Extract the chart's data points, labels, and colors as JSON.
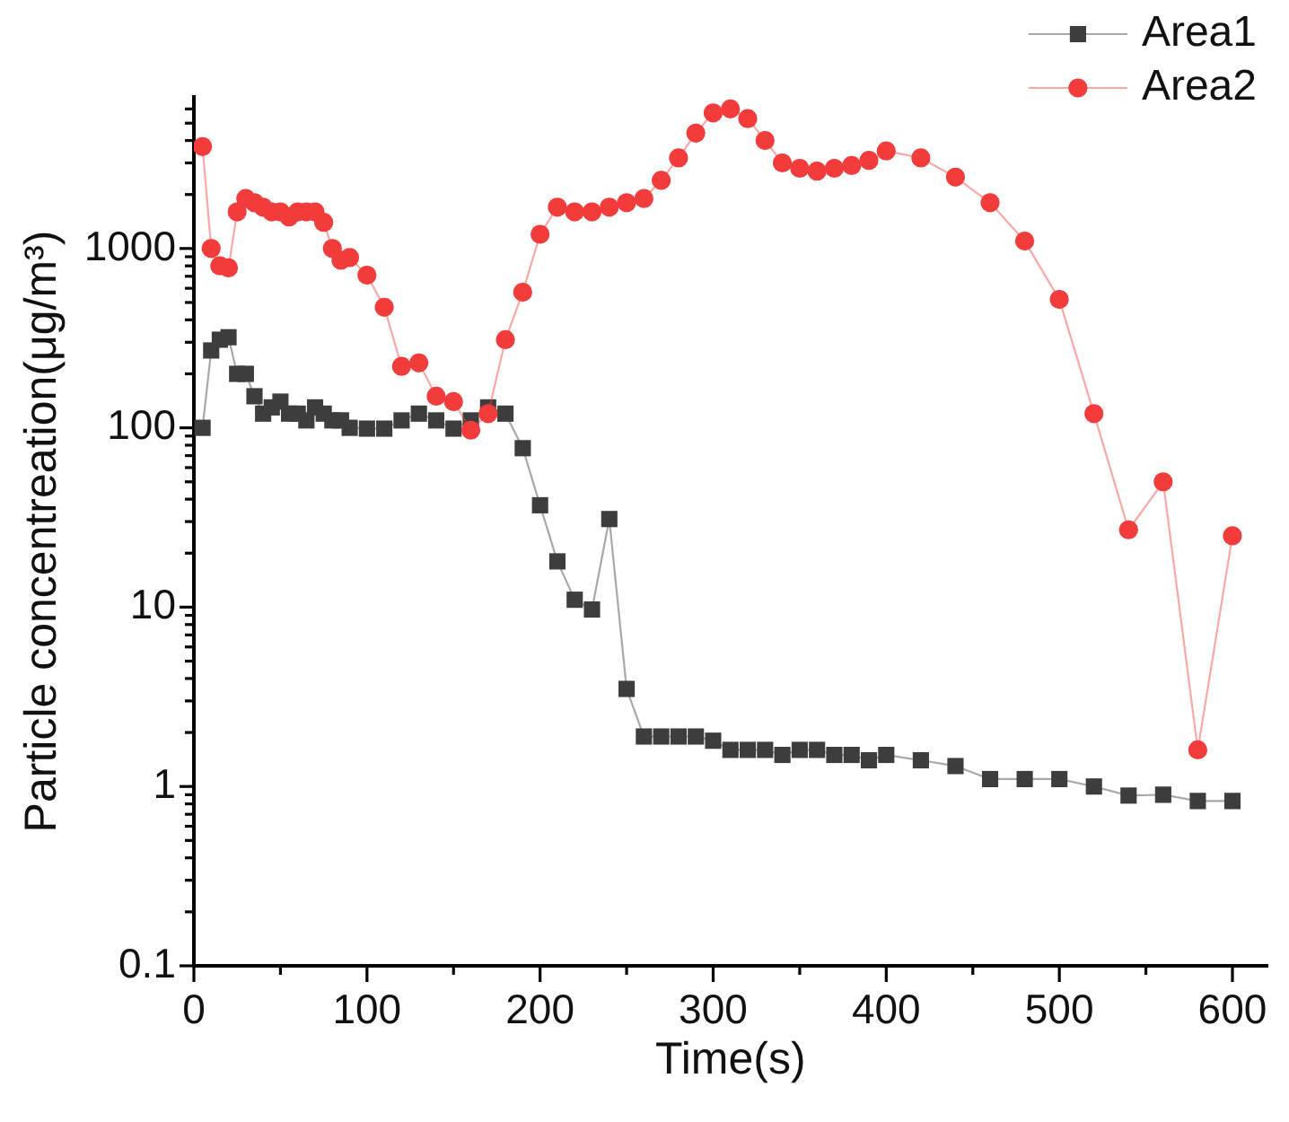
{
  "chart_data": {
    "type": "line",
    "xlabel": "Time(s)",
    "ylabel": "Particle concentreation(μg/m³)",
    "x": [
      5,
      10,
      15,
      20,
      25,
      30,
      35,
      40,
      45,
      50,
      55,
      60,
      65,
      70,
      75,
      80,
      85,
      90,
      100,
      110,
      120,
      130,
      140,
      150,
      160,
      170,
      180,
      190,
      200,
      210,
      220,
      230,
      240,
      250,
      260,
      270,
      280,
      290,
      300,
      310,
      320,
      330,
      340,
      350,
      360,
      370,
      380,
      390,
      400,
      420,
      440,
      460,
      480,
      500,
      520,
      540,
      560,
      580,
      600
    ],
    "series": [
      {
        "name": "Area1",
        "color": "#3d3d3d",
        "marker": "square",
        "values": [
          100,
          270,
          310,
          320,
          200,
          200,
          150,
          120,
          130,
          140,
          120,
          120,
          110,
          130,
          120,
          110,
          110,
          100,
          99,
          99,
          110,
          120,
          110,
          99,
          110,
          130,
          120,
          77,
          37,
          18,
          11,
          9.7,
          31,
          3.5,
          1.9,
          1.9,
          1.9,
          1.9,
          1.8,
          1.6,
          1.6,
          1.6,
          1.5,
          1.6,
          1.6,
          1.5,
          1.5,
          1.4,
          1.5,
          1.4,
          1.3,
          1.1,
          1.1,
          1.1,
          1.0,
          0.89,
          0.9,
          0.83,
          0.83
        ]
      },
      {
        "name": "Area2",
        "color": "#f23c3c",
        "marker": "circle",
        "values": [
          3700,
          1000,
          800,
          780,
          1600,
          1900,
          1800,
          1700,
          1600,
          1600,
          1500,
          1600,
          1600,
          1600,
          1400,
          1000,
          860,
          890,
          710,
          470,
          220,
          230,
          150,
          140,
          97,
          120,
          310,
          570,
          1200,
          1700,
          1600,
          1600,
          1700,
          1800,
          1900,
          2400,
          3200,
          4400,
          5700,
          6000,
          5300,
          4000,
          3000,
          2800,
          2700,
          2800,
          2900,
          3100,
          3500,
          3200,
          2500,
          1800,
          1100,
          520,
          120,
          27,
          50,
          1.6,
          25
        ]
      }
    ],
    "xlim": [
      0,
      620
    ],
    "xticks": [
      0,
      {
        "value": 50,
        "label": null
      },
      100,
      {
        "value": 150,
        "label": null
      },
      200,
      {
        "value": 250,
        "label": null
      },
      300,
      {
        "value": 350,
        "label": null
      },
      400,
      {
        "value": 450,
        "label": null
      },
      500,
      {
        "value": 550,
        "label": null
      },
      600
    ],
    "ylim": [
      0.1,
      7000
    ],
    "yticks": [
      0.1,
      {
        "value": 0.2,
        "label": null
      },
      {
        "value": 0.3,
        "label": null
      },
      {
        "value": 0.4,
        "label": null
      },
      {
        "value": 0.5,
        "label": null
      },
      {
        "value": 0.6,
        "label": null
      },
      {
        "value": 0.7,
        "label": null
      },
      {
        "value": 0.8,
        "label": null
      },
      {
        "value": 0.9,
        "label": null
      },
      1,
      {
        "value": 2,
        "label": null
      },
      {
        "value": 3,
        "label": null
      },
      {
        "value": 4,
        "label": null
      },
      {
        "value": 5,
        "label": null
      },
      {
        "value": 6,
        "label": null
      },
      {
        "value": 7,
        "label": null
      },
      {
        "value": 8,
        "label": null
      },
      {
        "value": 9,
        "label": null
      },
      10,
      {
        "value": 20,
        "label": null
      },
      {
        "value": 30,
        "label": null
      },
      {
        "value": 40,
        "label": null
      },
      {
        "value": 50,
        "label": null
      },
      {
        "value": 60,
        "label": null
      },
      {
        "value": 70,
        "label": null
      },
      {
        "value": 80,
        "label": null
      },
      {
        "value": 90,
        "label": null
      },
      100,
      {
        "value": 200,
        "label": null
      },
      {
        "value": 300,
        "label": null
      },
      {
        "value": 400,
        "label": null
      },
      {
        "value": 500,
        "label": null
      },
      {
        "value": 600,
        "label": null
      },
      {
        "value": 700,
        "label": null
      },
      {
        "value": 800,
        "label": null
      },
      {
        "value": 900,
        "label": null
      },
      1000,
      {
        "value": 2000,
        "label": null
      },
      {
        "value": 3000,
        "label": null
      },
      {
        "value": 4000,
        "label": null
      },
      {
        "value": 5000,
        "label": null
      },
      {
        "value": 6000,
        "label": null
      }
    ],
    "log": "y",
    "legend": "top right",
    "line_style": "solid"
  }
}
